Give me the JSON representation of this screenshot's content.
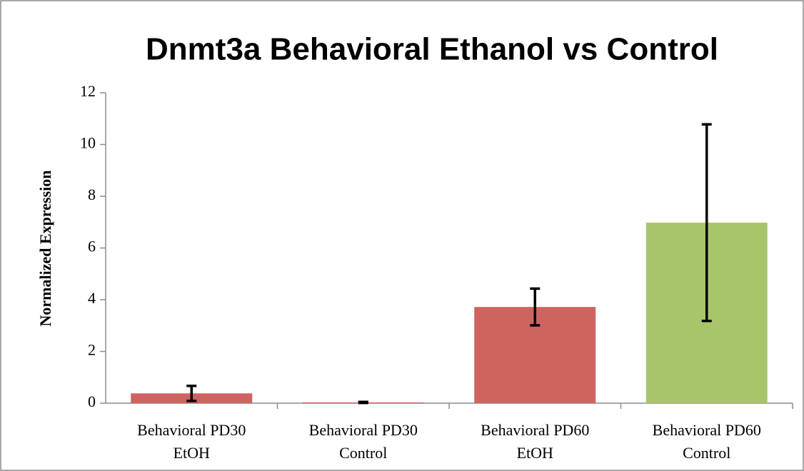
{
  "chart_data": {
    "type": "bar",
    "title": "Dnmt3a Behavioral Ethanol vs Control",
    "y_label": "Normalized Expression",
    "categories": [
      "Behavioral PD30\nEtOH",
      "Behavioral PD30\nControl",
      "Behavioral PD60\nEtOH",
      "Behavioral PD60\nControl"
    ],
    "values": [
      0.38,
      0.03,
      3.72,
      6.98
    ],
    "errors": [
      0.29,
      0.02,
      0.71,
      3.8
    ],
    "colors": [
      "#cd6460",
      "#cd6460",
      "#cd6460",
      "#a9c56b"
    ],
    "ylim": [
      0,
      12
    ],
    "yticks": [
      0,
      2,
      4,
      6,
      8,
      10,
      12
    ],
    "grid": false
  }
}
